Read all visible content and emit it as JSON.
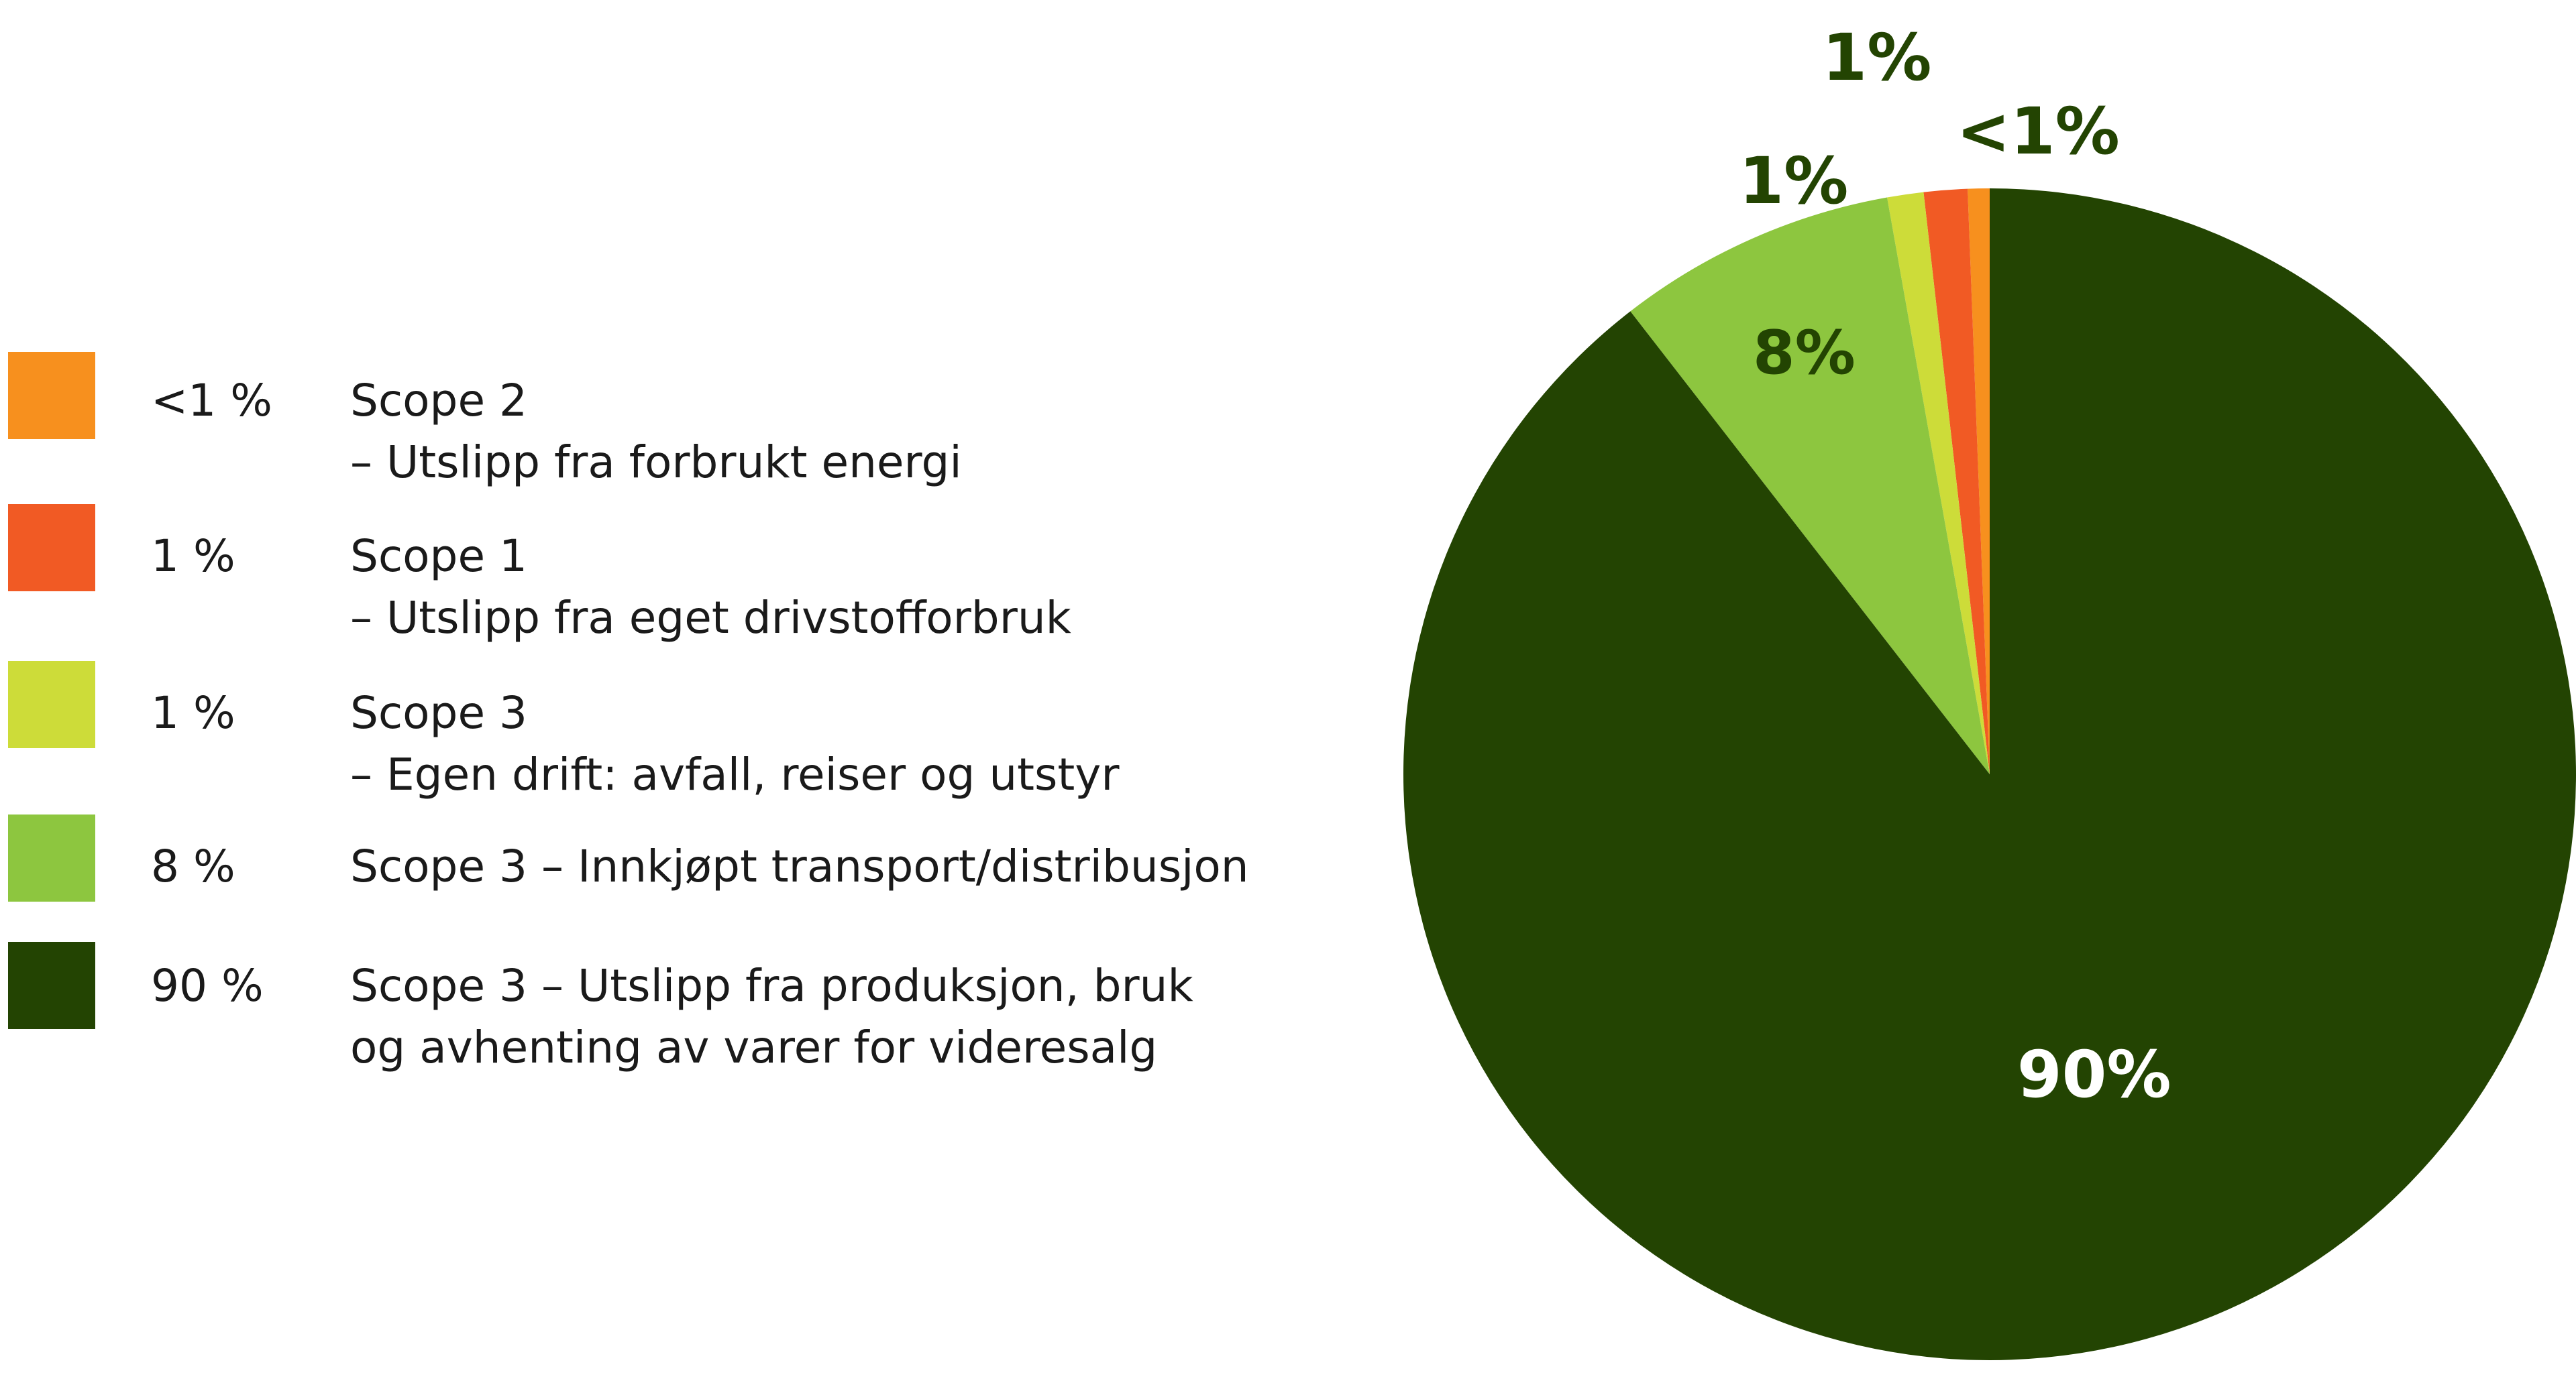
{
  "legend": {
    "items": [
      {
        "percent": "<1 %",
        "line1": "Scope 2",
        "line2": "– Utslipp fra forbrukt energi",
        "color": "#F7901E"
      },
      {
        "percent": "1 %",
        "line1": "Scope 1",
        "line2": "– Utslipp fra eget drivstofforbruk",
        "color": "#F15A24"
      },
      {
        "percent": "1 %",
        "line1": "Scope 3",
        "line2": "– Egen drift: avfall, reiser og utstyr",
        "color": "#CDDC39"
      },
      {
        "percent": "8 %",
        "line1": "Scope 3 – Innkjøpt transport/distribusjon",
        "line2": "",
        "color": "#8DC63F"
      },
      {
        "percent": "90 %",
        "line1": "Scope 3 – Utslipp fra produksjon, bruk",
        "line2": "og avhenting av varer for videresalg",
        "color": "#234402"
      }
    ]
  },
  "chart_data": {
    "type": "pie",
    "title": "",
    "slices": [
      {
        "label": "Scope 2 – Utslipp fra forbrukt energi",
        "value": 0.6,
        "display": "<1%",
        "color": "#F7901E"
      },
      {
        "label": "Scope 1 – Utslipp fra eget drivstofforbruk",
        "value": 1.2,
        "display": "1%",
        "color": "#F15A24"
      },
      {
        "label": "Scope 3 – Egen drift: avfall, reiser og utstyr",
        "value": 1.0,
        "display": "1%",
        "color": "#CDDC39"
      },
      {
        "label": "Scope 3 – Innkjøpt transport/distribusjon",
        "value": 7.7,
        "display": "8%",
        "color": "#8DC63F"
      },
      {
        "label": "Scope 3 – Utslipp fra produksjon, bruk og avhenting av varer for videresalg",
        "value": 89.5,
        "display": "90%",
        "color": "#234402"
      }
    ],
    "direction": "counterclockwise",
    "start": "12 o'clock",
    "legend_position": "left",
    "label_color_dark": "#234402",
    "label_color_light": "#ffffff"
  }
}
